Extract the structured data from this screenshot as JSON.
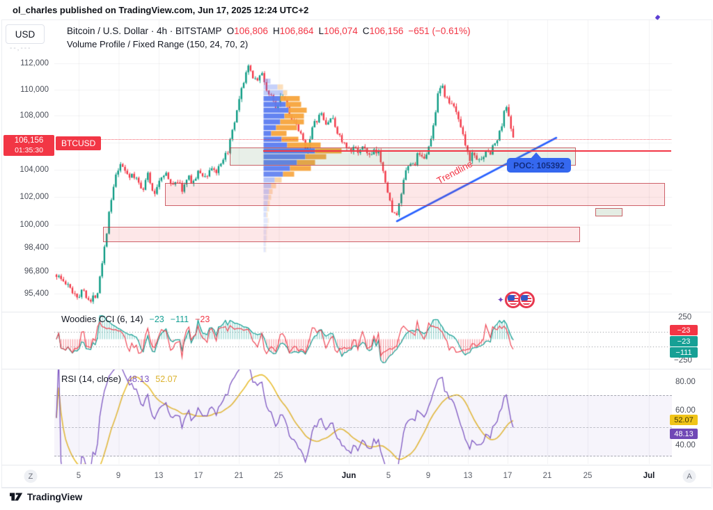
{
  "colors": {
    "up": "#089981",
    "down": "#f23645",
    "accent_blue": "#2962ff",
    "vp_blue": "#5b7cf0",
    "vp_orange": "#f7a43c",
    "purple": "#7e57c2",
    "yellow": "#e9c13d",
    "teal": "#16a095",
    "badge_red": "#f23645",
    "badge_yellow": "#f0c419",
    "badge_purple": "#7048b6"
  },
  "top_bar": {
    "text": "ol_charles published on TradingView.com, Jun 17, 2025 12:24 UTC+2"
  },
  "header": {
    "currency": "USD",
    "masked_price": "--,---",
    "title": "Bitcoin / U.S. Dollar · 4h · BITSTAMP",
    "ohlc": [
      {
        "k": "O",
        "v": "106,806"
      },
      {
        "k": "H",
        "v": "106,864"
      },
      {
        "k": "L",
        "v": "106,074"
      },
      {
        "k": "C",
        "v": "106,156"
      }
    ],
    "change": "−651 (−0.61%)",
    "indicator": "Volume Profile / Fixed Range (150, 24, 70, 2)"
  },
  "price_scale": {
    "labels": [
      "112,000",
      "110,000",
      "108,000",
      "104,000",
      "102,000",
      "100,000",
      "98,400",
      "96,800",
      "95,400"
    ]
  },
  "price_badge": {
    "price": "106,156",
    "countdown": "01:35:30",
    "symbol": "BTCUSD"
  },
  "overlays": {
    "poc_label": "POC: 105392",
    "trendline_label": "Trendline"
  },
  "cci": {
    "title": "Woodies CCI (6, 14)",
    "values": [
      {
        "text": "−23",
        "color": "teal"
      },
      {
        "text": "−111",
        "color": "teal"
      },
      {
        "text": "−23",
        "color": "red"
      }
    ],
    "axis_top": "250",
    "axis_bottom": "−250",
    "badges": [
      {
        "text": "−23",
        "color": "red"
      },
      {
        "text": "−23",
        "color": "teal"
      },
      {
        "text": "−111",
        "color": "teal"
      }
    ]
  },
  "rsi": {
    "title": "RSI (14, close)",
    "value": "48.13",
    "ma_value": "52.07",
    "axis": [
      "80.00",
      "60.00",
      "40.00"
    ],
    "badges": [
      {
        "text": "52.07",
        "color": "yellow"
      },
      {
        "text": "48.13",
        "color": "purple"
      }
    ]
  },
  "time_axis": {
    "labels": [
      {
        "t": "Z",
        "style": "chip"
      },
      {
        "t": "5"
      },
      {
        "t": "9"
      },
      {
        "t": "13"
      },
      {
        "t": "17"
      },
      {
        "t": "21"
      },
      {
        "t": "25"
      },
      {
        "t": "Jun",
        "style": "month"
      },
      {
        "t": "5"
      },
      {
        "t": "9"
      },
      {
        "t": "13"
      },
      {
        "t": "17"
      },
      {
        "t": "21"
      },
      {
        "t": "25"
      },
      {
        "t": "Jul",
        "style": "month"
      },
      {
        "t": "A",
        "style": "chip"
      }
    ]
  },
  "footer": {
    "brand": "TradingView"
  },
  "chart_data": {
    "type": "candlestick",
    "symbol": "BTCUSD",
    "exchange": "BITSTAMP",
    "interval": "4h",
    "current": {
      "open": 106806,
      "high": 106864,
      "low": 106074,
      "close": 106156,
      "change": -651,
      "change_pct": -0.61
    },
    "countdown": "01:35:30",
    "price_axis": {
      "ticks": [
        112000,
        110000,
        108000,
        104000,
        102000,
        100000,
        98400,
        96800,
        95400
      ],
      "visible_range": [
        94400,
        113600
      ],
      "scale": "log"
    },
    "time_axis_ticks": [
      "May 5",
      "May 9",
      "May 13",
      "May 17",
      "May 21",
      "May 25",
      "Jun 1",
      "Jun 5",
      "Jun 9",
      "Jun 13",
      "Jun 17",
      "Jun 21",
      "Jun 25",
      "Jul 1"
    ],
    "price_path_anchors": [
      [
        81,
        96600
      ],
      [
        92,
        96100
      ],
      [
        103,
        95600
      ],
      [
        112,
        95250
      ],
      [
        120,
        95650
      ],
      [
        130,
        94850
      ],
      [
        140,
        95600
      ],
      [
        150,
        98500
      ],
      [
        158,
        101300
      ],
      [
        168,
        103900
      ],
      [
        175,
        104300
      ],
      [
        185,
        103600
      ],
      [
        196,
        103300
      ],
      [
        205,
        102600
      ],
      [
        213,
        103800
      ],
      [
        220,
        101900
      ],
      [
        228,
        103200
      ],
      [
        237,
        103900
      ],
      [
        245,
        102800
      ],
      [
        253,
        103300
      ],
      [
        262,
        102500
      ],
      [
        270,
        103400
      ],
      [
        278,
        103100
      ],
      [
        286,
        103900
      ],
      [
        295,
        103400
      ],
      [
        303,
        104200
      ],
      [
        311,
        103800
      ],
      [
        320,
        104500
      ],
      [
        328,
        105600
      ],
      [
        336,
        107200
      ],
      [
        344,
        109200
      ],
      [
        352,
        111200
      ],
      [
        356,
        111600
      ],
      [
        360,
        111300
      ],
      [
        368,
        110700
      ],
      [
        376,
        111200
      ],
      [
        384,
        109800
      ],
      [
        390,
        109300
      ],
      [
        397,
        108600
      ],
      [
        404,
        109900
      ],
      [
        411,
        109000
      ],
      [
        418,
        107800
      ],
      [
        425,
        107200
      ],
      [
        432,
        106500
      ],
      [
        440,
        105300
      ],
      [
        447,
        106900
      ],
      [
        454,
        107600
      ],
      [
        461,
        108100
      ],
      [
        468,
        107300
      ],
      [
        475,
        107900
      ],
      [
        482,
        107100
      ],
      [
        489,
        106300
      ],
      [
        496,
        105650
      ],
      [
        503,
        105200
      ],
      [
        510,
        105750
      ],
      [
        517,
        105300
      ],
      [
        524,
        105650
      ],
      [
        531,
        104900
      ],
      [
        538,
        105300
      ],
      [
        545,
        105100
      ],
      [
        552,
        103700
      ],
      [
        558,
        101800
      ],
      [
        564,
        101000
      ],
      [
        570,
        100500
      ],
      [
        576,
        102200
      ],
      [
        582,
        103600
      ],
      [
        588,
        104500
      ],
      [
        594,
        104300
      ],
      [
        600,
        105100
      ],
      [
        606,
        104700
      ],
      [
        612,
        105300
      ],
      [
        618,
        105900
      ],
      [
        624,
        107800
      ],
      [
        628,
        109600
      ],
      [
        632,
        110300
      ],
      [
        636,
        110000
      ],
      [
        640,
        109400
      ],
      [
        646,
        108900
      ],
      [
        652,
        108600
      ],
      [
        658,
        107800
      ],
      [
        664,
        107000
      ],
      [
        668,
        106000
      ],
      [
        672,
        105000
      ],
      [
        676,
        104800
      ],
      [
        680,
        105300
      ],
      [
        684,
        104900
      ],
      [
        688,
        104500
      ],
      [
        692,
        105200
      ],
      [
        696,
        105000
      ],
      [
        700,
        105400
      ],
      [
        704,
        105200
      ],
      [
        708,
        105800
      ],
      [
        712,
        106000
      ],
      [
        716,
        106400
      ],
      [
        720,
        107300
      ],
      [
        724,
        108200
      ],
      [
        727,
        108700
      ],
      [
        730,
        108300
      ],
      [
        733,
        107300
      ],
      [
        736,
        106600
      ],
      [
        737,
        106156
      ]
    ],
    "volume_profile": {
      "settings": [
        150,
        24,
        70,
        2
      ],
      "poc": 105392,
      "rows": [
        [
          10,
          0,
          0.35
        ],
        [
          20,
          8,
          0.35
        ],
        [
          28,
          6,
          0.4
        ],
        [
          24,
          28,
          0.95
        ],
        [
          32,
          22,
          0.95
        ],
        [
          36,
          26,
          0.95
        ],
        [
          30,
          28,
          0.95
        ],
        [
          24,
          34,
          0.95
        ],
        [
          18,
          30,
          0.95
        ],
        [
          11,
          22,
          0.95
        ],
        [
          26,
          24,
          0.95
        ],
        [
          34,
          48,
          0.95
        ],
        [
          74,
          38,
          1.0
        ],
        [
          60,
          30,
          0.95
        ],
        [
          48,
          26,
          0.95
        ],
        [
          38,
          30,
          0.95
        ],
        [
          28,
          16,
          0.9
        ],
        [
          16,
          10,
          0.45
        ],
        [
          11,
          7,
          0.4
        ],
        [
          8,
          5,
          0.35
        ],
        [
          7,
          4,
          0.3
        ],
        [
          6,
          3,
          0.3
        ],
        [
          5,
          3,
          0.25
        ],
        [
          4,
          2,
          0.25
        ]
      ],
      "tail_rows": [
        [
          6,
          2
        ],
        [
          5,
          2
        ],
        [
          4,
          1
        ],
        [
          4,
          1
        ],
        [
          3,
          1
        ],
        [
          3,
          1
        ]
      ]
    },
    "zones": [
      {
        "name": "resistance-green",
        "price_top": 105650,
        "price_bottom": 104310
      },
      {
        "name": "demand-mid-pink",
        "price_top": 103000,
        "price_bottom": 101400
      },
      {
        "name": "demand-low-pink",
        "price_top": 99850,
        "price_bottom": 98840
      },
      {
        "name": "minor-green-box",
        "price_top": 101190,
        "price_bottom": 100640
      }
    ],
    "poc_line_price": 105392,
    "trendline": {
      "from_price": 100250,
      "to_price": 106410
    },
    "indicators": {
      "woodies_cci": {
        "params": [
          6,
          14
        ],
        "values": [
          -23,
          -111,
          -23
        ],
        "scale_max": 250,
        "scale_min": -250
      },
      "rsi": {
        "length": 14,
        "source": "close",
        "value": 48.13,
        "ma_value": 52.07,
        "levels": [
          80,
          60,
          40
        ]
      }
    },
    "render_seed": 1337
  }
}
